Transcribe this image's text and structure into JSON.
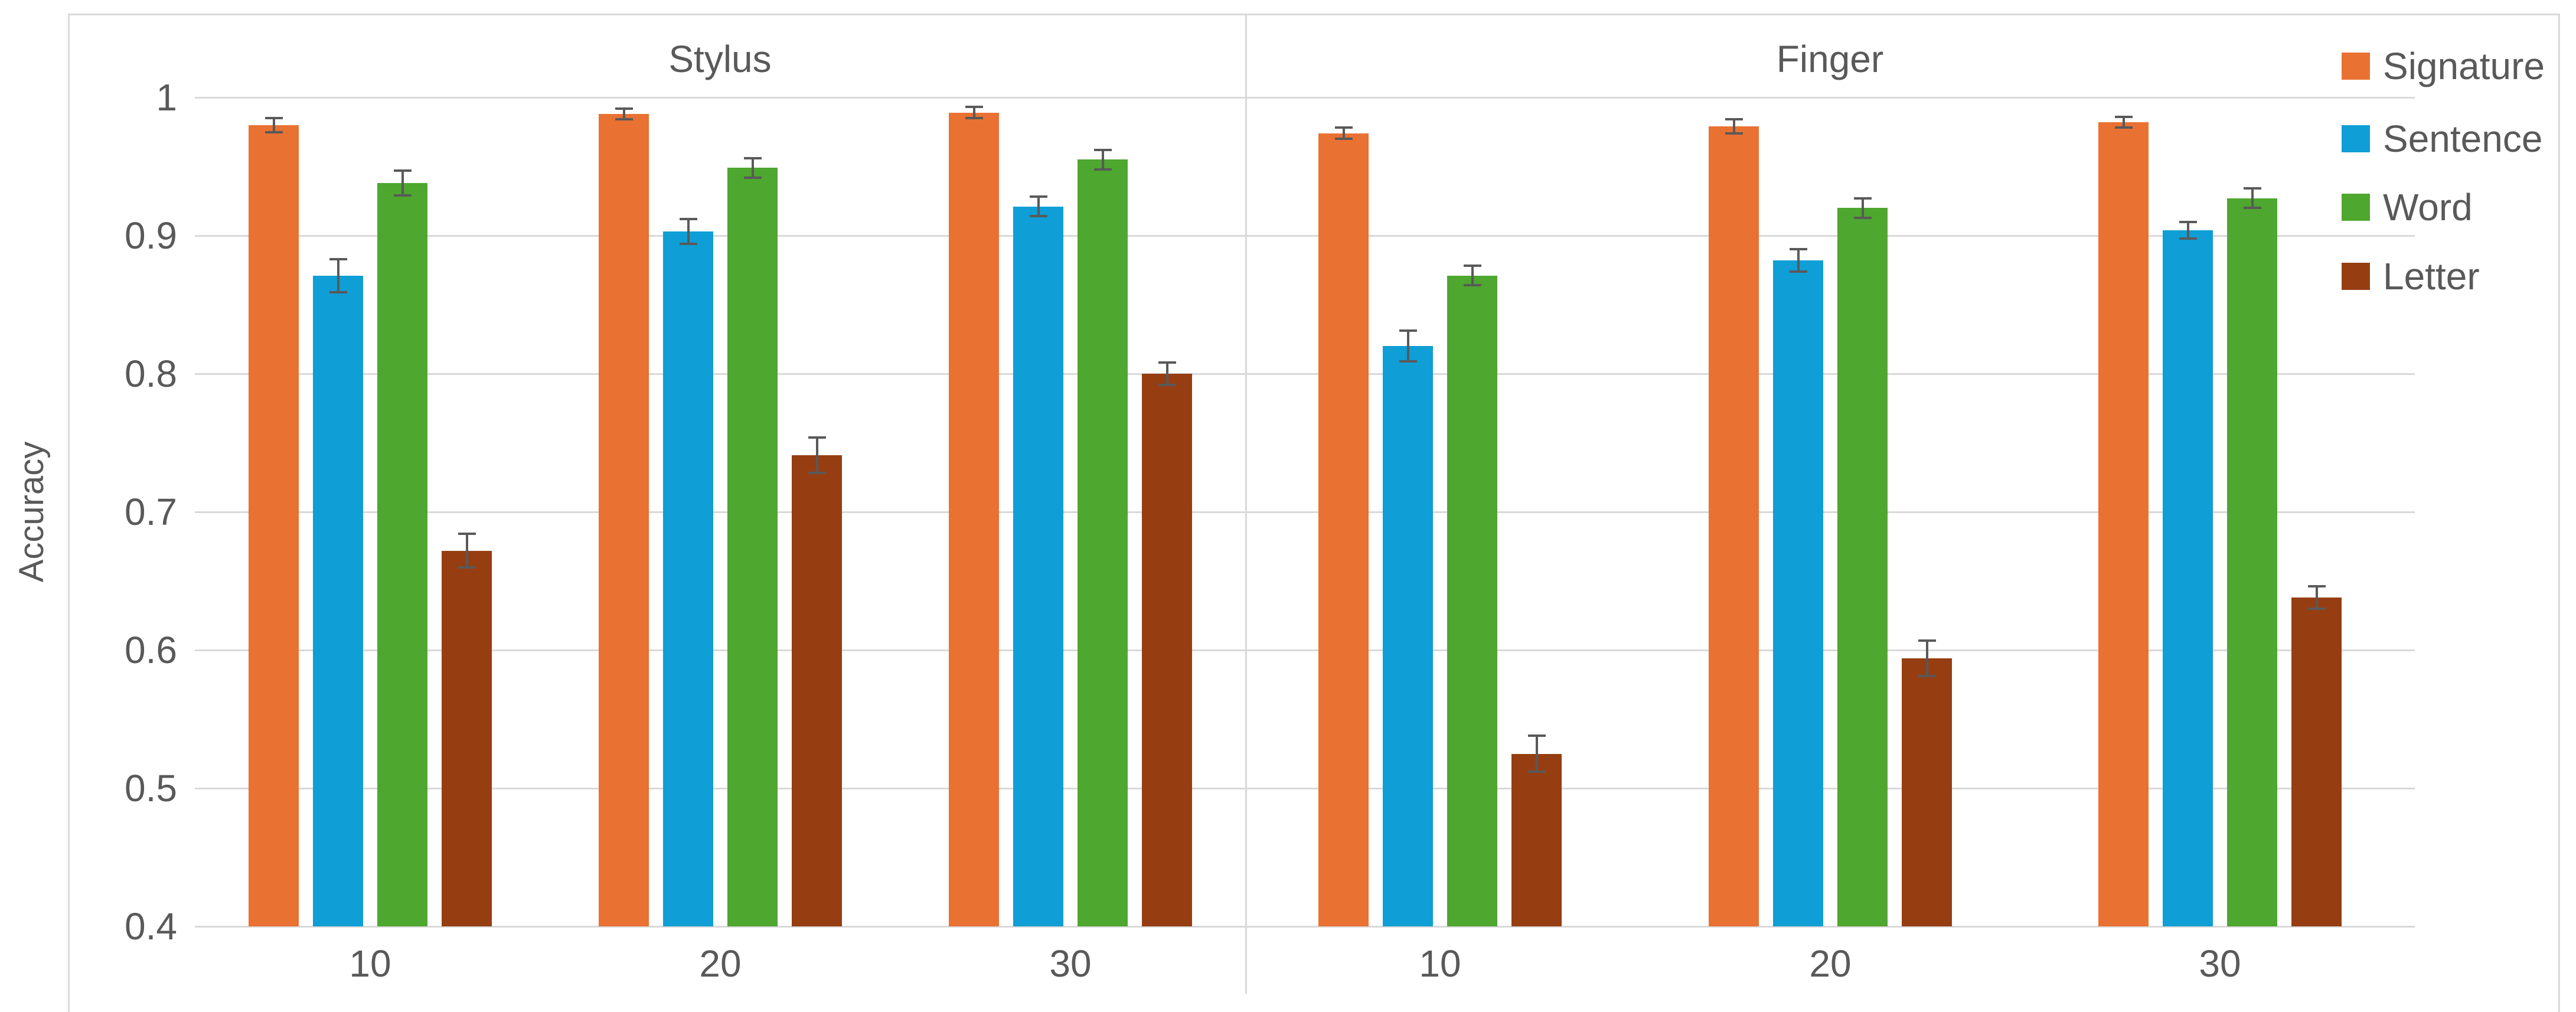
{
  "chart_data": {
    "type": "bar",
    "title": "",
    "ylabel": "Accuracy",
    "ylim": [
      0.4,
      1.0
    ],
    "yticks": [
      1,
      0.9,
      0.8,
      0.7,
      0.6,
      0.5,
      0.4
    ],
    "ytick_labels": [
      "1",
      "0.9",
      "0.8",
      "0.7",
      "0.6",
      "0.5",
      "0.4"
    ],
    "grid": true,
    "error_bars": true,
    "legend_position": "top-right",
    "panels": [
      {
        "title": "Stylus",
        "categories": [
          "10",
          "20",
          "30"
        ]
      },
      {
        "title": "Finger",
        "categories": [
          "10",
          "20",
          "30"
        ]
      }
    ],
    "series": [
      {
        "name": "Signature",
        "color": "#E97132",
        "values": {
          "Stylus": [
            0.98,
            0.988,
            0.989
          ],
          "Finger": [
            0.974,
            0.979,
            0.982
          ]
        },
        "errors": {
          "Stylus": [
            0.005,
            0.004,
            0.004
          ],
          "Finger": [
            0.004,
            0.005,
            0.004
          ]
        }
      },
      {
        "name": "Sentence",
        "color": "#0F9ED5",
        "values": {
          "Stylus": [
            0.871,
            0.903,
            0.921
          ],
          "Finger": [
            0.82,
            0.882,
            0.904
          ]
        },
        "errors": {
          "Stylus": [
            0.012,
            0.009,
            0.007
          ],
          "Finger": [
            0.011,
            0.008,
            0.006
          ]
        }
      },
      {
        "name": "Word",
        "color": "#4EA72E",
        "values": {
          "Stylus": [
            0.938,
            0.949,
            0.955
          ],
          "Finger": [
            0.871,
            0.92,
            0.927
          ]
        },
        "errors": {
          "Stylus": [
            0.009,
            0.007,
            0.007
          ],
          "Finger": [
            0.007,
            0.007,
            0.007
          ]
        }
      },
      {
        "name": "Letter",
        "color": "#963E11",
        "values": {
          "Stylus": [
            0.672,
            0.741,
            0.8
          ],
          "Finger": [
            0.525,
            0.594,
            0.638
          ]
        },
        "errors": {
          "Stylus": [
            0.012,
            0.013,
            0.008
          ],
          "Finger": [
            0.013,
            0.013,
            0.008
          ]
        }
      }
    ],
    "colors": {
      "axis_text": "#595959",
      "grid": "#D9D9D9",
      "chart_border": "#D9D9D9",
      "error_bar": "#595959",
      "background": "#FFFFFF"
    }
  }
}
